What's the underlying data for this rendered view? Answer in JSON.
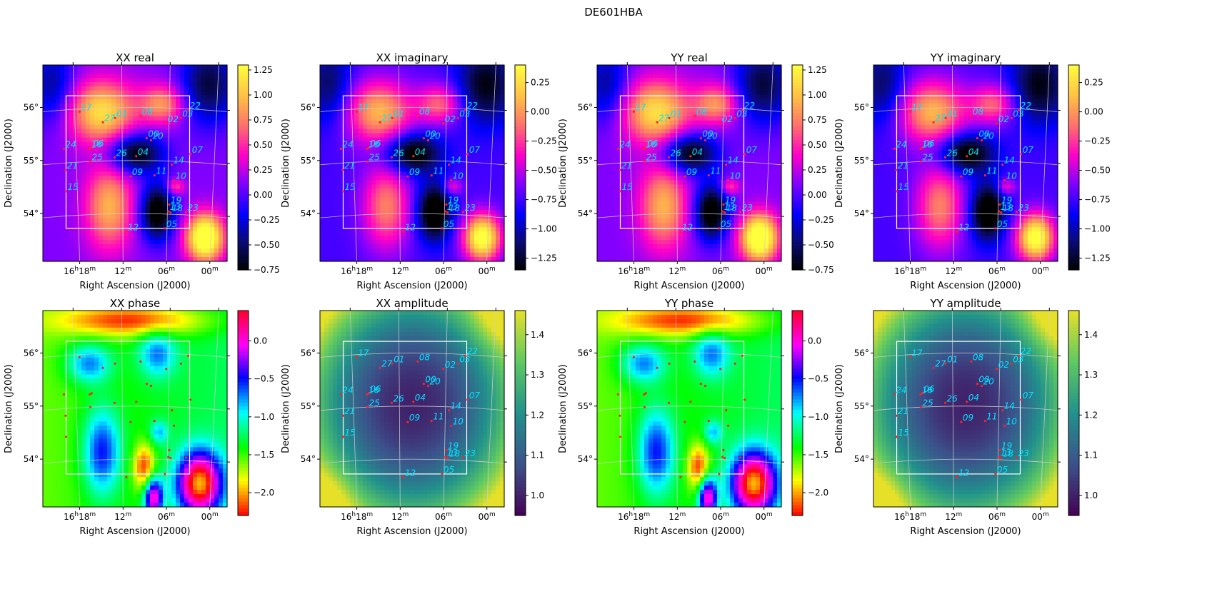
{
  "figure": {
    "title": "DE601HBA"
  },
  "colors": {
    "marker": "#ff2222",
    "label": "#00e5ff",
    "grid": "#cfcfcf",
    "box": "#ffffff"
  },
  "stations": [
    {
      "id": "00",
      "ra": 16.1455,
      "dec": 55.42
    },
    {
      "id": "01",
      "ra": 16.2185,
      "dec": 55.8
    },
    {
      "id": "02",
      "ra": 16.1005,
      "dec": 55.7
    },
    {
      "id": "03",
      "ra": 16.0665,
      "dec": 55.8
    },
    {
      "id": "04",
      "ra": 16.1695,
      "dec": 55.08
    },
    {
      "id": "05",
      "ra": 16.1035,
      "dec": 53.72
    },
    {
      "id": "06",
      "ra": 16.2725,
      "dec": 55.24
    },
    {
      "id": "07",
      "ra": 16.0445,
      "dec": 55.12
    },
    {
      "id": "08",
      "ra": 16.1595,
      "dec": 55.84
    },
    {
      "id": "09",
      "ra": 16.1825,
      "dec": 54.7
    },
    {
      "id": "10",
      "ra": 16.0825,
      "dec": 54.63
    },
    {
      "id": "11",
      "ra": 16.1275,
      "dec": 54.72
    },
    {
      "id": "12",
      "ra": 16.1925,
      "dec": 53.66
    },
    {
      "id": "13",
      "ra": 16.0955,
      "dec": 54.04
    },
    {
      "id": "14",
      "ra": 16.0875,
      "dec": 54.92
    },
    {
      "id": "15",
      "ra": 16.3315,
      "dec": 54.42
    },
    {
      "id": "16",
      "ra": 16.2765,
      "dec": 55.22
    },
    {
      "id": "17",
      "ra": 16.3005,
      "dec": 55.92
    },
    {
      "id": "18",
      "ra": 16.0905,
      "dec": 54.02
    },
    {
      "id": "19",
      "ra": 16.0935,
      "dec": 54.17
    },
    {
      "id": "20",
      "ra": 16.1355,
      "dec": 55.38
    },
    {
      "id": "21",
      "ra": 16.3325,
      "dec": 54.82
    },
    {
      "id": "22",
      "ra": 16.0495,
      "dec": 55.95
    },
    {
      "id": "23",
      "ra": 16.0545,
      "dec": 54.03
    },
    {
      "id": "24",
      "ra": 16.3365,
      "dec": 55.22
    },
    {
      "id": "25",
      "ra": 16.2755,
      "dec": 54.98
    },
    {
      "id": "26",
      "ra": 16.2195,
      "dec": 55.06
    },
    {
      "id": "27",
      "ra": 16.2465,
      "dec": 55.72
    }
  ],
  "panels": [
    {
      "title": "XX real",
      "cmap": "plasma",
      "cmin": -0.75,
      "cmax": 1.3,
      "ticks": [
        -0.75,
        -0.5,
        -0.25,
        0.0,
        0.25,
        0.5,
        0.75,
        1.0,
        1.25
      ],
      "tick_labels": [
        "−0.75",
        "−0.50",
        "−0.25",
        "0.00",
        "0.25",
        "0.50",
        "0.75",
        "1.00",
        "1.25"
      ],
      "xlabel": "Right Ascension (J2000)",
      "ylabel": "Declination (J2000)"
    },
    {
      "title": "XX imaginary",
      "cmap": "plasma",
      "cmin": -1.35,
      "cmax": 0.4,
      "ticks": [
        -1.25,
        -1.0,
        -0.75,
        -0.5,
        -0.25,
        0.0,
        0.25
      ],
      "tick_labels": [
        "−1.25",
        "−1.00",
        "−0.75",
        "−0.50",
        "−0.25",
        "0.00",
        "0.25"
      ],
      "xlabel": "Right Ascension (J2000)",
      "ylabel": "Declination (J2000)"
    },
    {
      "title": "YY real",
      "cmap": "plasma",
      "cmin": -0.75,
      "cmax": 1.3,
      "ticks": [
        -0.75,
        -0.5,
        -0.25,
        0.0,
        0.25,
        0.5,
        0.75,
        1.0,
        1.25
      ],
      "tick_labels": [
        "−0.75",
        "−0.50",
        "−0.25",
        "0.00",
        "0.25",
        "0.50",
        "0.75",
        "1.00",
        "1.25"
      ],
      "xlabel": "Right Ascension (J2000)",
      "ylabel": "Declination (J2000)"
    },
    {
      "title": "YY imaginary",
      "cmap": "plasma",
      "cmin": -1.35,
      "cmax": 0.4,
      "ticks": [
        -1.25,
        -1.0,
        -0.75,
        -0.5,
        -0.25,
        0.0,
        0.25
      ],
      "tick_labels": [
        "−1.25",
        "−1.00",
        "−0.75",
        "−0.50",
        "−0.25",
        "0.00",
        "0.25"
      ],
      "xlabel": "Right Ascension (J2000)",
      "ylabel": "Declination (J2000)"
    },
    {
      "title": "XX phase",
      "cmap": "hsv",
      "cmin": -2.3,
      "cmax": 0.4,
      "ticks": [
        -2.0,
        -1.5,
        -1.0,
        -0.5,
        0.0
      ],
      "tick_labels": [
        "−2.0",
        "−1.5",
        "−1.0",
        "−0.5",
        "0.0"
      ],
      "xlabel": "Right Ascension (J2000)",
      "ylabel": "Declination (J2000)"
    },
    {
      "title": "XX amplitude",
      "cmap": "viridis",
      "cmin": 0.95,
      "cmax": 1.46,
      "ticks": [
        1.0,
        1.1,
        1.2,
        1.3,
        1.4
      ],
      "tick_labels": [
        "1.0",
        "1.1",
        "1.2",
        "1.3",
        "1.4"
      ],
      "xlabel": "Right Ascension (J2000)",
      "ylabel": "Declination (J2000)"
    },
    {
      "title": "YY phase",
      "cmap": "hsv",
      "cmin": -2.3,
      "cmax": 0.4,
      "ticks": [
        -2.0,
        -1.5,
        -1.0,
        -0.5,
        0.0
      ],
      "tick_labels": [
        "−2.0",
        "−1.5",
        "−1.0",
        "−0.5",
        "0.0"
      ],
      "xlabel": "Right Ascension (J2000)",
      "ylabel": "Declination (J2000)"
    },
    {
      "title": "YY amplitude",
      "cmap": "viridis",
      "cmin": 0.95,
      "cmax": 1.46,
      "ticks": [
        1.0,
        1.1,
        1.2,
        1.3,
        1.4
      ],
      "tick_labels": [
        "1.0",
        "1.1",
        "1.2",
        "1.3",
        "1.4"
      ],
      "xlabel": "Right Ascension (J2000)",
      "ylabel": "Declination (J2000)"
    }
  ],
  "axes": {
    "ra_range_hours": [
      15.96,
      16.385
    ],
    "dec_range_deg": [
      53.1,
      56.8
    ],
    "ra_ticks": [
      {
        "hours": 16.3,
        "label_h": "16",
        "label_m": "18"
      },
      {
        "hours": 16.2,
        "label_h": "",
        "label_m": "12"
      },
      {
        "hours": 16.1,
        "label_h": "",
        "label_m": "06"
      },
      {
        "hours": 16.0,
        "label_h": "",
        "label_m": "00"
      }
    ],
    "dec_ticks": [
      {
        "deg": 54,
        "label": "54°"
      },
      {
        "deg": 55,
        "label": "55°"
      },
      {
        "deg": 56,
        "label": "56°"
      }
    ],
    "box": {
      "ra": [
        16.3315,
        16.0465
      ],
      "dec": [
        53.72,
        56.22
      ]
    }
  },
  "chart_data": [
    {
      "type": "heatmap",
      "title": "XX real",
      "xlabel": "Right Ascension (J2000)",
      "ylabel": "Declination (J2000)",
      "clim": [
        -0.75,
        1.3
      ],
      "colorbar_ticks": [
        -0.75,
        -0.5,
        -0.25,
        0.0,
        0.25,
        0.5,
        0.75,
        1.0,
        1.25
      ]
    },
    {
      "type": "heatmap",
      "title": "XX imaginary",
      "xlabel": "Right Ascension (J2000)",
      "ylabel": "Declination (J2000)",
      "clim": [
        -1.35,
        0.4
      ],
      "colorbar_ticks": [
        -1.25,
        -1.0,
        -0.75,
        -0.5,
        -0.25,
        0.0,
        0.25
      ]
    },
    {
      "type": "heatmap",
      "title": "YY real",
      "xlabel": "Right Ascension (J2000)",
      "ylabel": "Declination (J2000)",
      "clim": [
        -0.75,
        1.3
      ],
      "colorbar_ticks": [
        -0.75,
        -0.5,
        -0.25,
        0.0,
        0.25,
        0.5,
        0.75,
        1.0,
        1.25
      ]
    },
    {
      "type": "heatmap",
      "title": "YY imaginary",
      "xlabel": "Right Ascension (J2000)",
      "ylabel": "Declination (J2000)",
      "clim": [
        -1.35,
        0.4
      ],
      "colorbar_ticks": [
        -1.25,
        -1.0,
        -0.75,
        -0.5,
        -0.25,
        0.0,
        0.25
      ]
    },
    {
      "type": "heatmap",
      "title": "XX phase",
      "xlabel": "Right Ascension (J2000)",
      "ylabel": "Declination (J2000)",
      "clim": [
        -2.3,
        0.4
      ],
      "colorbar_ticks": [
        -2.0,
        -1.5,
        -1.0,
        -0.5,
        0.0
      ]
    },
    {
      "type": "heatmap",
      "title": "XX amplitude",
      "xlabel": "Right Ascension (J2000)",
      "ylabel": "Declination (J2000)",
      "clim": [
        0.95,
        1.46
      ],
      "colorbar_ticks": [
        1.0,
        1.1,
        1.2,
        1.3,
        1.4
      ]
    },
    {
      "type": "heatmap",
      "title": "YY phase",
      "xlabel": "Right Ascension (J2000)",
      "ylabel": "Declination (J2000)",
      "clim": [
        -2.3,
        0.4
      ],
      "colorbar_ticks": [
        -2.0,
        -1.5,
        -1.0,
        -0.5,
        0.0
      ]
    },
    {
      "type": "heatmap",
      "title": "YY amplitude",
      "xlabel": "Right Ascension (J2000)",
      "ylabel": "Declination (J2000)",
      "clim": [
        0.95,
        1.46
      ],
      "colorbar_ticks": [
        1.0,
        1.1,
        1.2,
        1.3,
        1.4
      ]
    }
  ]
}
